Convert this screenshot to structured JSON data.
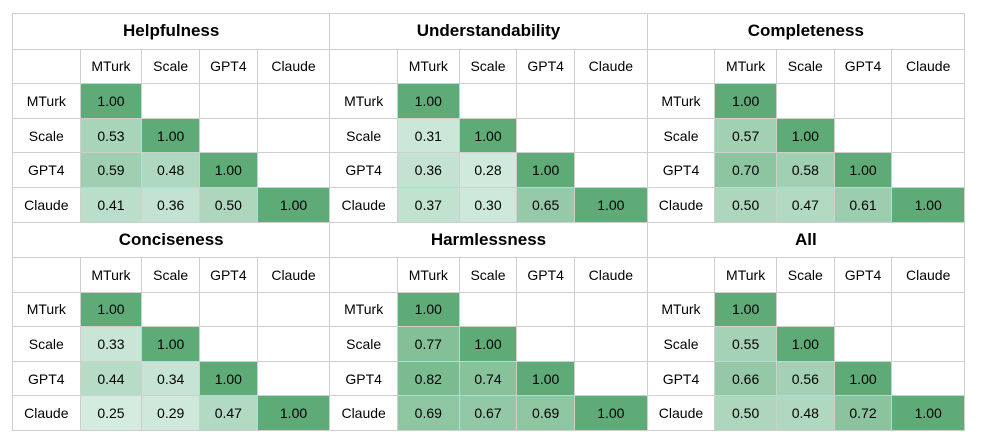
{
  "chart_data": [
    {
      "type": "heatmap",
      "title": "Helpfulness",
      "labels": [
        "MTurk",
        "Scale",
        "GPT4",
        "Claude"
      ],
      "values": [
        [
          1.0
        ],
        [
          0.53,
          1.0
        ],
        [
          0.59,
          0.48,
          1.0
        ],
        [
          0.41,
          0.36,
          0.5,
          1.0
        ]
      ]
    },
    {
      "type": "heatmap",
      "title": "Understandability",
      "labels": [
        "MTurk",
        "Scale",
        "GPT4",
        "Claude"
      ],
      "values": [
        [
          1.0
        ],
        [
          0.31,
          1.0
        ],
        [
          0.36,
          0.28,
          1.0
        ],
        [
          0.37,
          0.3,
          0.65,
          1.0
        ]
      ]
    },
    {
      "type": "heatmap",
      "title": "Completeness",
      "labels": [
        "MTurk",
        "Scale",
        "GPT4",
        "Claude"
      ],
      "values": [
        [
          1.0
        ],
        [
          0.57,
          1.0
        ],
        [
          0.7,
          0.58,
          1.0
        ],
        [
          0.5,
          0.47,
          0.61,
          1.0
        ]
      ]
    },
    {
      "type": "heatmap",
      "title": "Conciseness",
      "labels": [
        "MTurk",
        "Scale",
        "GPT4",
        "Claude"
      ],
      "values": [
        [
          1.0
        ],
        [
          0.33,
          1.0
        ],
        [
          0.44,
          0.34,
          1.0
        ],
        [
          0.25,
          0.29,
          0.47,
          1.0
        ]
      ]
    },
    {
      "type": "heatmap",
      "title": "Harmlessness",
      "labels": [
        "MTurk",
        "Scale",
        "GPT4",
        "Claude"
      ],
      "values": [
        [
          1.0
        ],
        [
          0.77,
          1.0
        ],
        [
          0.82,
          0.74,
          1.0
        ],
        [
          0.69,
          0.67,
          0.69,
          1.0
        ]
      ]
    },
    {
      "type": "heatmap",
      "title": "All",
      "labels": [
        "MTurk",
        "Scale",
        "GPT4",
        "Claude"
      ],
      "values": [
        [
          1.0
        ],
        [
          0.55,
          1.0
        ],
        [
          0.66,
          0.56,
          1.0
        ],
        [
          0.5,
          0.48,
          0.72,
          1.0
        ]
      ]
    }
  ],
  "colors": {
    "low": "#d4ece0",
    "high": "#5fab77",
    "border": "#cfcfcf"
  }
}
